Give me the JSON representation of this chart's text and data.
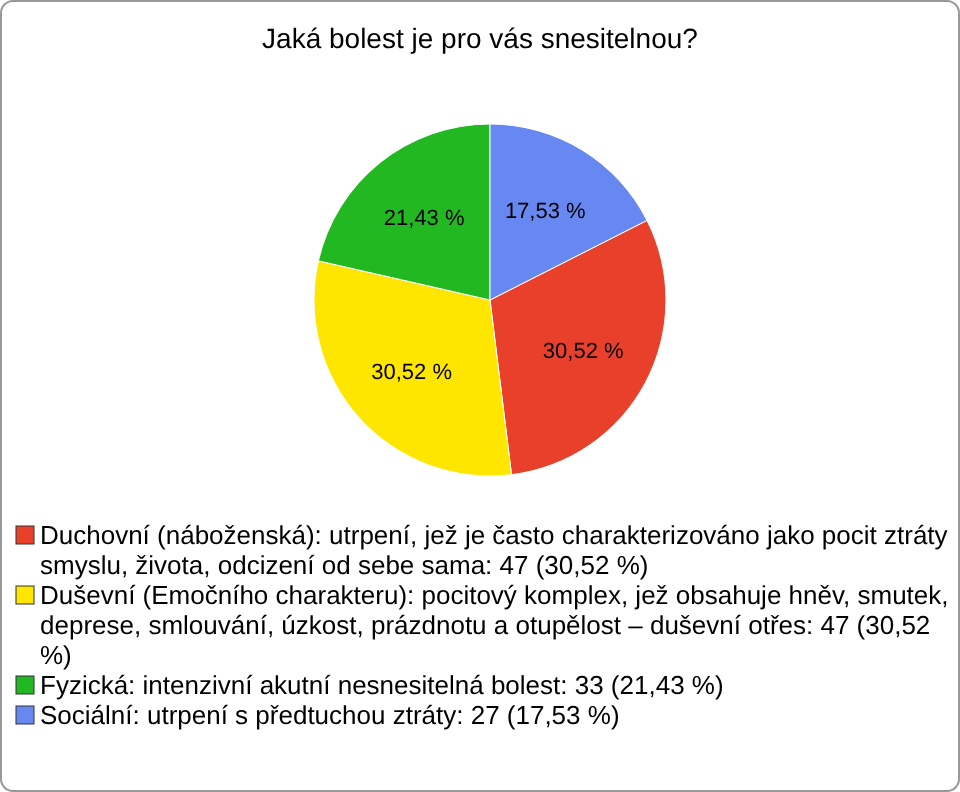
{
  "chart_data": {
    "type": "pie",
    "title": "Jaká bolest je pro vás snesitelnou?",
    "categories": [
      "Duchovní (náboženská): utrpení, jež je často charakterizováno jako pocit ztráty smyslu, života, odcizení od sebe sama: 47 (30,52 %)",
      "Duševní (Emočního charakteru): pocitový komplex, jež obsahuje hněv, smutek, deprese, smlouvání, úzkost, prázdnotu a otupělost – duševní otřes: 47 (30,52 %)",
      "Fyzická: intenzivní akutní nesnesitelná bolest: 33 (21,43 %)",
      "Sociální: utrpení s předtuchou ztráty: 27 (17,53 %)"
    ],
    "values": [
      30.52,
      30.52,
      21.43,
      17.53
    ],
    "colors": [
      "#e8402a",
      "#ffe600",
      "#22b822",
      "#6688f0"
    ],
    "value_labels": [
      "30,52 %",
      "30,52 %",
      "21,43 %",
      "17,53 %"
    ],
    "legend": "bottom"
  }
}
